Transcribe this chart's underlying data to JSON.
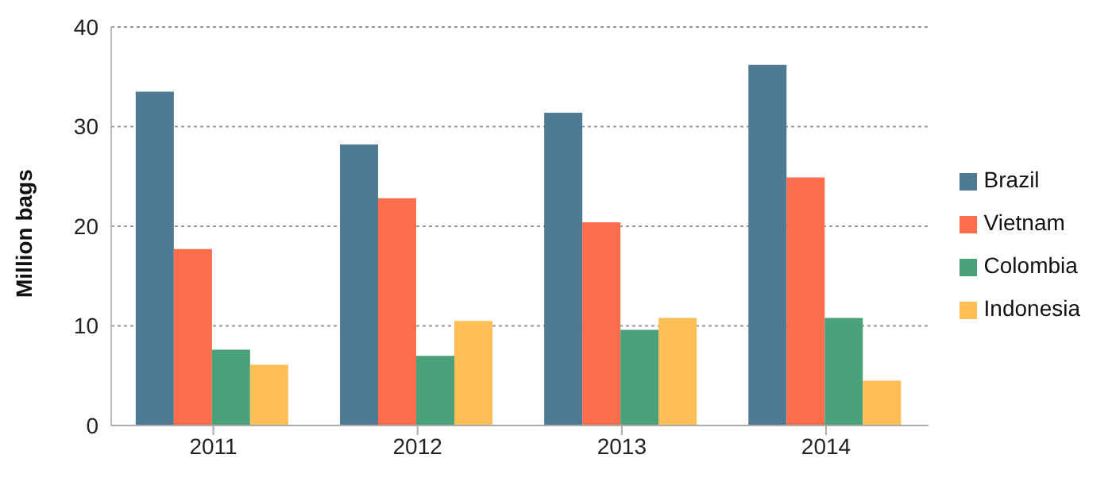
{
  "chart_data": {
    "type": "bar",
    "ylabel": "Million bags",
    "categories": [
      "2011",
      "2012",
      "2013",
      "2014"
    ],
    "series": [
      {
        "name": "Brazil",
        "color": "#4e7a94",
        "values": [
          33.5,
          28.2,
          31.4,
          36.2
        ]
      },
      {
        "name": "Vietnam",
        "color": "#fc6e4c",
        "values": [
          17.7,
          22.8,
          20.4,
          24.9
        ]
      },
      {
        "name": "Colombia",
        "color": "#4aa17a",
        "values": [
          7.6,
          7.0,
          9.6,
          10.8
        ]
      },
      {
        "name": "Indonesia",
        "color": "#fdbf56",
        "values": [
          6.1,
          10.5,
          10.8,
          4.5
        ]
      }
    ],
    "ylim": [
      0,
      40
    ],
    "yticks": [
      0,
      10,
      20,
      30,
      40
    ],
    "grid": "y",
    "legend": "right"
  }
}
